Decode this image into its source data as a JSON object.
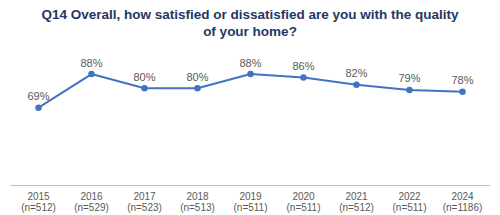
{
  "chart_data": {
    "type": "line",
    "title": "Q14 Overall, how satisfied or dissatisfied are you with the quality\nof your home?",
    "categories": [
      "2015\n(n=512)",
      "2016\n(n=529)",
      "2017\n(n=523)",
      "2018\n(n=513)",
      "2019\n(n=511)",
      "2020\n(n=511)",
      "2021\n(n=512)",
      "2022\n(n=511)",
      "2024\n(n=1186)"
    ],
    "values": [
      69,
      88,
      80,
      80,
      88,
      86,
      82,
      79,
      78
    ],
    "value_labels": [
      "69%",
      "88%",
      "80%",
      "80%",
      "88%",
      "86%",
      "82%",
      "79%",
      "78%"
    ],
    "color": "#4472c4",
    "marker": "circle",
    "ylim": [
      25,
      90
    ],
    "grid": false,
    "data_labels": true,
    "tick_labels": "x"
  }
}
